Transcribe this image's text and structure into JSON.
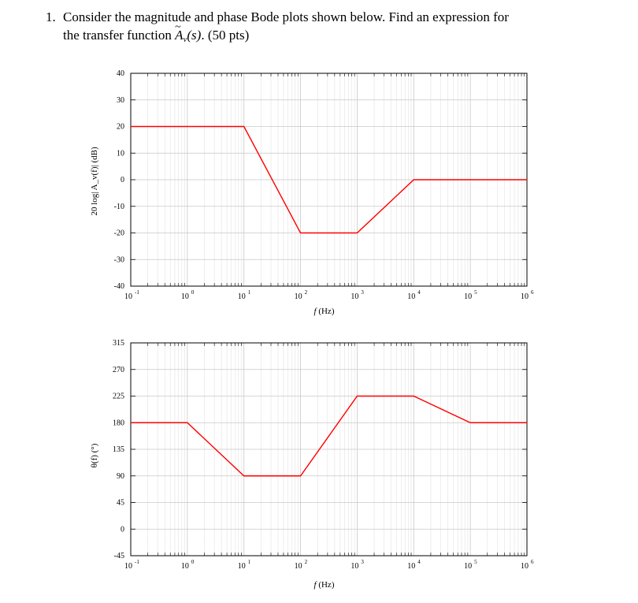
{
  "question": {
    "number": "1.",
    "line1": "Consider the magnitude and phase Bode plots shown below.  Find an expression for",
    "line2_prefix": "the transfer function ",
    "symbol": "A",
    "subscript": "v",
    "argument": "(s)",
    "line2_suffix": ".  (50 pts)"
  },
  "chart_data": [
    {
      "type": "line",
      "xscale": "log",
      "xlim": [
        0.1,
        1000000
      ],
      "ylim": [
        -40,
        40
      ],
      "yticks": [
        -40,
        -30,
        -20,
        -10,
        0,
        10,
        20,
        30,
        40
      ],
      "xtick_base": "10",
      "xtick_exponents": [
        "-1",
        "0",
        "1",
        "2",
        "3",
        "4",
        "5",
        "6"
      ],
      "xlabel": "f  (Hz)",
      "ylabel": "20 log|  A_v(f)| (dB)",
      "grid": true,
      "series": [
        {
          "color": "#ff0000",
          "points": [
            [
              0.1,
              20
            ],
            [
              10,
              20
            ],
            [
              100,
              -20
            ],
            [
              1000,
              -20
            ],
            [
              10000,
              0
            ],
            [
              1000000,
              0
            ]
          ]
        }
      ]
    },
    {
      "type": "line",
      "xscale": "log",
      "xlim": [
        0.1,
        1000000
      ],
      "ylim": [
        -45,
        315
      ],
      "yticks": [
        -45,
        0,
        45,
        90,
        135,
        180,
        225,
        270,
        315
      ],
      "xtick_base": "10",
      "xtick_exponents": [
        "-1",
        "0",
        "1",
        "2",
        "3",
        "4",
        "5",
        "6"
      ],
      "xlabel": "f  (Hz)",
      "ylabel": "θ(f)  (°)",
      "grid": true,
      "series": [
        {
          "color": "#ff0000",
          "points": [
            [
              0.1,
              180
            ],
            [
              1,
              180
            ],
            [
              10,
              90
            ],
            [
              100,
              90
            ],
            [
              1000,
              225
            ],
            [
              10000,
              225
            ],
            [
              100000,
              180
            ],
            [
              1000000,
              180
            ]
          ]
        }
      ]
    }
  ]
}
